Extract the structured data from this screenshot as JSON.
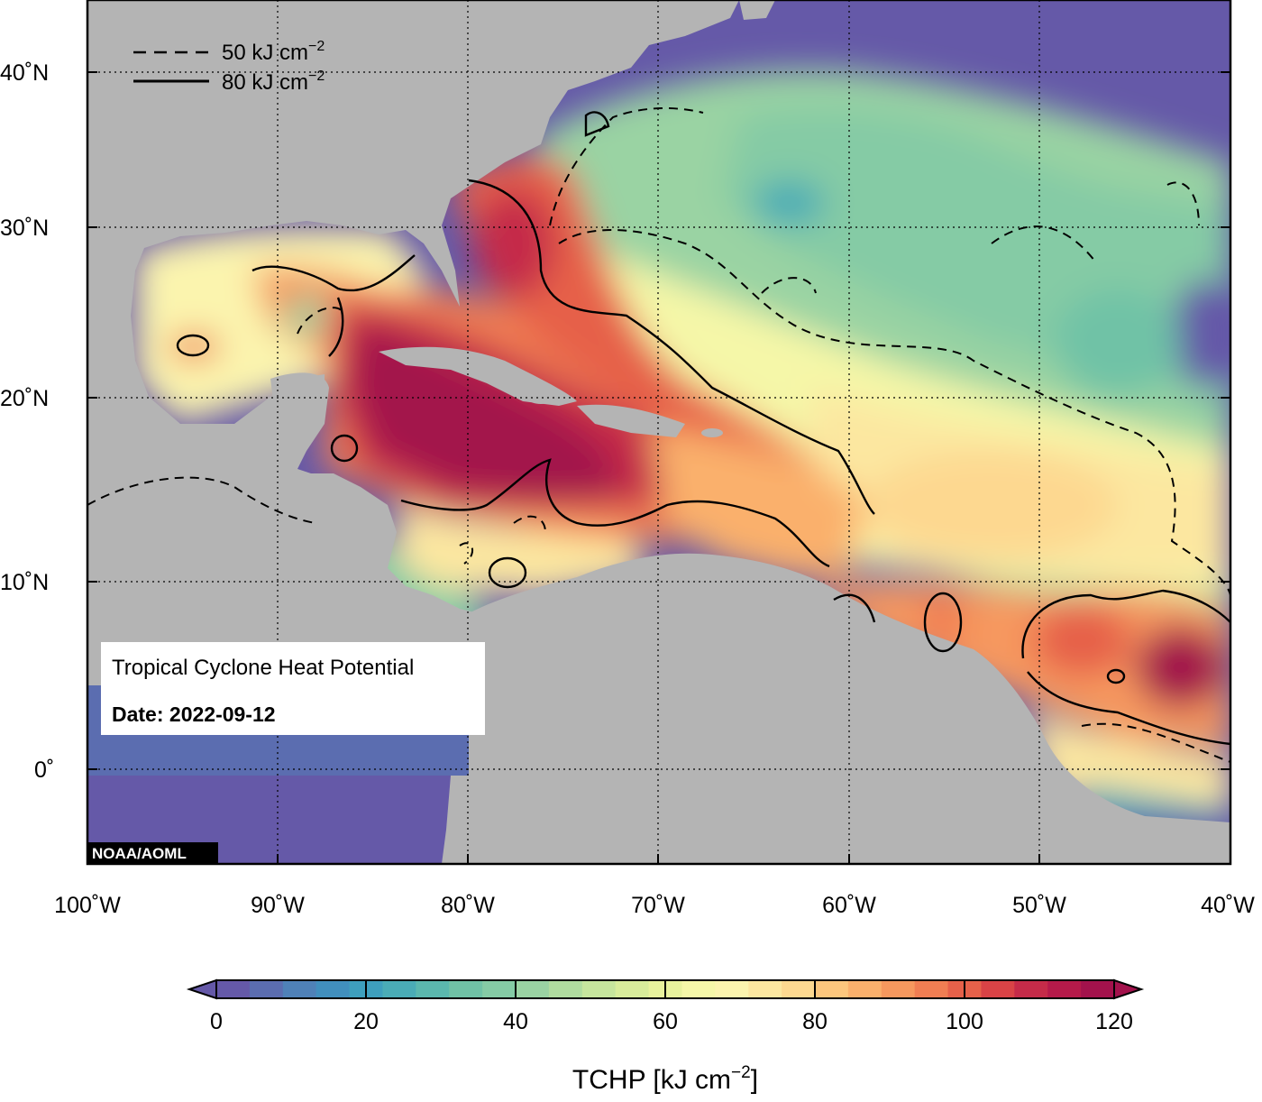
{
  "map": {
    "info_title": "Tropical Cyclone Heat Potential",
    "info_date": "Date: 2022-09-12",
    "credit": "NOAA/AOML",
    "lat_labels": [
      "40˚N",
      "30˚N",
      "20˚N",
      "10˚N",
      "0˚"
    ],
    "lon_labels": [
      "100˚W",
      "90˚W",
      "80˚W",
      "70˚W",
      "60˚W",
      "50˚W",
      "40˚W"
    ],
    "contour_legend": {
      "dashed_value": "50 kJ cm",
      "solid_value": "80 kJ cm",
      "exponent": "−2"
    },
    "colors": {
      "land": "#b4b4b4",
      "low": "#6559a8",
      "high": "#a3124c"
    }
  },
  "colorbar": {
    "ticks": [
      "0",
      "20",
      "40",
      "60",
      "80",
      "100",
      "120"
    ],
    "label_main": "TCHP [kJ cm",
    "label_exp": "−2",
    "label_close": "]",
    "colors": [
      "#6559a8",
      "#5b6db0",
      "#4f81b8",
      "#418fbe",
      "#3e9fbd",
      "#4aacb6",
      "#5bb8ae",
      "#70c2a6",
      "#85cba5",
      "#9ad3a3",
      "#b0dc9f",
      "#c6e59d",
      "#d8ec9b",
      "#e8f29d",
      "#f5f7a8",
      "#fbf4ae",
      "#fce7a0",
      "#fdd890",
      "#fcc67d",
      "#fab06c",
      "#f6985e",
      "#f07e53",
      "#e6614a",
      "#d94346",
      "#c52b49",
      "#b51a4a",
      "#a3124c"
    ]
  }
}
